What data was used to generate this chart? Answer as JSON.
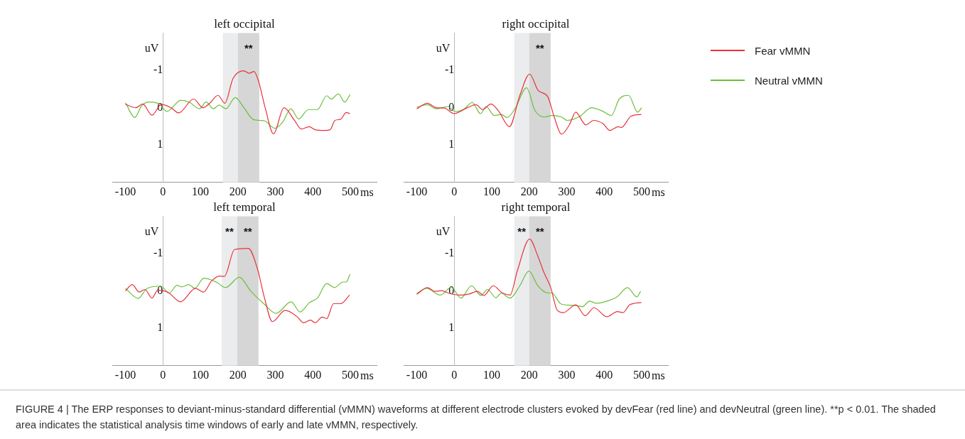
{
  "chart_data": [
    {
      "type": "line",
      "title": "left occipital",
      "xlabel": "ms",
      "ylabel": "uV",
      "xlim": [
        -135,
        570
      ],
      "xticks": [
        -100,
        0,
        100,
        200,
        300,
        400,
        500
      ],
      "ylim": [
        2,
        -2
      ],
      "yticks": [
        -1,
        0,
        1
      ],
      "grid": false,
      "legend": false,
      "marker": "none",
      "line_style": "solid",
      "bands": [
        {
          "axis": "x",
          "from": 160,
          "to": 200,
          "color": "#ebecee"
        },
        {
          "axis": "x",
          "from": 200,
          "to": 257,
          "color": "#d6d6d6",
          "label": "**"
        }
      ],
      "series": [
        {
          "color": "#e8323c",
          "x": [
            -100,
            -88,
            -72,
            -54,
            -29,
            -4,
            23,
            42,
            82,
            107,
            125,
            147,
            165,
            187,
            215,
            230,
            243,
            255,
            273,
            295,
            323,
            351,
            369,
            390,
            406,
            431,
            446,
            459,
            474,
            489,
            499
          ],
          "values": [
            -0.1,
            -0.04,
            0,
            -0.1,
            0.2,
            -0.09,
            0.01,
            0.14,
            -0.23,
            0,
            -0.12,
            -0.33,
            -0.12,
            -0.78,
            -0.99,
            -0.92,
            -0.97,
            -0.71,
            0.01,
            0.7,
            0,
            0.34,
            0.57,
            0.51,
            0.59,
            0.61,
            0.59,
            0.34,
            0.31,
            0.13,
            0.16
          ]
        },
        {
          "color": "#6cbf3c",
          "x": [
            -100,
            -75,
            -57,
            -35,
            -10,
            11,
            48,
            70,
            98,
            115,
            135,
            150,
            168,
            193,
            215,
            240,
            258,
            273,
            298,
            320,
            341,
            362,
            388,
            412,
            437,
            449,
            468,
            485,
            499
          ],
          "values": [
            -0.13,
            0.26,
            -0.05,
            -0.15,
            -0.1,
            0.1,
            -0.2,
            -0.15,
            0.03,
            -0.15,
            0.03,
            -0.07,
            0.03,
            -0.27,
            -0.02,
            0.31,
            0.34,
            0.36,
            0.55,
            0.38,
            0.03,
            0.3,
            0.05,
            0.05,
            -0.32,
            -0.23,
            -0.37,
            -0.15,
            -0.35
          ]
        }
      ]
    },
    {
      "type": "line",
      "title": "right occipital",
      "xlabel": "ms",
      "ylabel": "uV",
      "xlim": [
        -135,
        570
      ],
      "xticks": [
        -100,
        0,
        100,
        200,
        300,
        400,
        500
      ],
      "ylim": [
        2,
        -2
      ],
      "yticks": [
        -1,
        0,
        1
      ],
      "grid": false,
      "legend": "right",
      "marker": "none",
      "line_style": "solid",
      "bands": [
        {
          "axis": "x",
          "from": 160,
          "to": 200,
          "color": "#ebecee"
        },
        {
          "axis": "x",
          "from": 200,
          "to": 257,
          "color": "#d6d6d6",
          "label": "**"
        }
      ],
      "series": [
        {
          "name": "Fear vMMN",
          "color": "#e8323c",
          "x": [
            -100,
            -72,
            -48,
            -26,
            -1,
            14,
            33,
            58,
            76,
            98,
            119,
            147,
            175,
            201,
            224,
            249,
            267,
            286,
            307,
            324,
            351,
            372,
            397,
            415,
            437,
            446,
            471,
            499
          ],
          "values": [
            0.03,
            -0.12,
            0,
            0.01,
            0.16,
            0.11,
            0.01,
            -0.08,
            0.05,
            -0.1,
            0.1,
            0.51,
            -0.33,
            -0.9,
            -0.46,
            -0.3,
            0.26,
            0.71,
            0.46,
            0.12,
            0.46,
            0.34,
            0.43,
            0.61,
            0.51,
            0.53,
            0.23,
            0.18
          ]
        },
        {
          "name": "Neutral vMMN",
          "color": "#6cbf3c",
          "x": [
            -100,
            -72,
            -48,
            -17,
            2,
            27,
            48,
            70,
            85,
            107,
            125,
            141,
            162,
            193,
            215,
            240,
            261,
            286,
            301,
            335,
            366,
            397,
            419,
            440,
            465,
            489,
            500
          ],
          "values": [
            -0.01,
            -0.08,
            0.03,
            -0.03,
            0.1,
            0.03,
            -0.14,
            0.16,
            -0.03,
            0.21,
            0.18,
            0.26,
            0.03,
            -0.53,
            0.07,
            0.25,
            0.21,
            0.25,
            0.34,
            0.23,
            0,
            0.1,
            0.21,
            -0.23,
            -0.33,
            0.12,
            0
          ]
        }
      ]
    },
    {
      "type": "line",
      "title": "left temporal",
      "xlabel": "ms",
      "ylabel": "uV",
      "xlim": [
        -135,
        570
      ],
      "xticks": [
        -100,
        0,
        100,
        200,
        300,
        400,
        500
      ],
      "ylim": [
        2,
        -2
      ],
      "yticks": [
        -1,
        0,
        1
      ],
      "grid": false,
      "legend": false,
      "marker": "none",
      "line_style": "solid",
      "bands": [
        {
          "axis": "x",
          "from": 157,
          "to": 198,
          "color": "#ebecee",
          "label": "**"
        },
        {
          "axis": "x",
          "from": 198,
          "to": 255,
          "color": "#d6d6d6",
          "label": "**"
        }
      ],
      "series": [
        {
          "color": "#e8323c",
          "x": [
            -100,
            -82,
            -63,
            -48,
            -29,
            -14,
            13,
            47,
            87,
            108,
            130,
            151,
            164,
            191,
            228,
            252,
            271,
            292,
            326,
            357,
            375,
            394,
            406,
            425,
            437,
            455,
            474,
            498
          ],
          "values": [
            0,
            -0.17,
            0.03,
            -0.04,
            0.19,
            -0.02,
            0.03,
            0.29,
            -0.07,
            0.03,
            -0.27,
            -0.4,
            -0.39,
            -1.11,
            -1.14,
            -0.6,
            0.19,
            0.82,
            0.52,
            0.68,
            0.85,
            0.78,
            0.85,
            0.7,
            0.74,
            0.34,
            0.34,
            0.11
          ]
        },
        {
          "color": "#6cbf3c",
          "x": [
            -100,
            -66,
            -42,
            -5,
            16,
            38,
            50,
            69,
            85,
            109,
            142,
            167,
            204,
            234,
            271,
            302,
            342,
            366,
            391,
            412,
            437,
            458,
            480,
            489,
            499
          ],
          "values": [
            -0.07,
            0.2,
            -0.07,
            -0.13,
            0.06,
            -0.15,
            -0.11,
            -0.17,
            -0.07,
            -0.34,
            -0.24,
            -0.09,
            -0.37,
            0,
            0.36,
            0.6,
            0.29,
            0.56,
            0.31,
            0.19,
            -0.2,
            -0.09,
            -0.24,
            -0.24,
            -0.45
          ]
        }
      ]
    },
    {
      "type": "line",
      "title": "right temporal",
      "xlabel": "ms",
      "ylabel": "uV",
      "xlim": [
        -135,
        570
      ],
      "xticks": [
        -100,
        0,
        100,
        200,
        300,
        400,
        500
      ],
      "ylim": [
        2,
        -2
      ],
      "yticks": [
        -1,
        0,
        1
      ],
      "grid": false,
      "legend": false,
      "marker": "none",
      "line_style": "solid",
      "bands": [
        {
          "axis": "x",
          "from": 160,
          "to": 200,
          "color": "#ebecee",
          "label": "**"
        },
        {
          "axis": "x",
          "from": 200,
          "to": 257,
          "color": "#d6d6d6",
          "label": "**"
        }
      ],
      "annotations": [
        "FIGURE 4 | The ERP responses to deviant-minus-standard differential (vMMN) waveforms at different electrode clusters evoked by devFear (red line) and devNeutral (green line). **p < 0.01. The shaded area indicates the statistical analysis time windows of early and late vMMN, respectively."
      ],
      "series": [
        {
          "color": "#e8323c",
          "x": [
            -100,
            -71,
            -52,
            -34,
            -15,
            15,
            40,
            61,
            79,
            104,
            128,
            149,
            168,
            201,
            223,
            239,
            257,
            275,
            291,
            324,
            349,
            373,
            407,
            435,
            450,
            468,
            499
          ],
          "values": [
            0.09,
            -0.09,
            0.01,
            -0.01,
            0.06,
            0.11,
            0.08,
            0.01,
            0.12,
            -0.14,
            0.05,
            0.11,
            -0.53,
            -1.39,
            -0.93,
            -0.5,
            -0.1,
            0.52,
            0.58,
            0.37,
            0.66,
            0.45,
            0.69,
            0.55,
            0.58,
            0.37,
            0.31
          ]
        },
        {
          "color": "#6cbf3c",
          "x": [
            -100,
            -74,
            -37,
            -8,
            18,
            46,
            71,
            89,
            111,
            125,
            149,
            175,
            199,
            223,
            248,
            260,
            285,
            324,
            342,
            361,
            379,
            401,
            434,
            462,
            487,
            497
          ],
          "values": [
            0.07,
            -0.07,
            0.11,
            -0.1,
            0.19,
            -0.14,
            0.12,
            -0.04,
            0.18,
            0.06,
            0.19,
            -0.14,
            -0.53,
            -0.14,
            0.05,
            0.05,
            0.35,
            0.39,
            0.42,
            0.27,
            0.33,
            0.29,
            0.16,
            -0.09,
            0.16,
            0.01
          ]
        }
      ]
    }
  ]
}
